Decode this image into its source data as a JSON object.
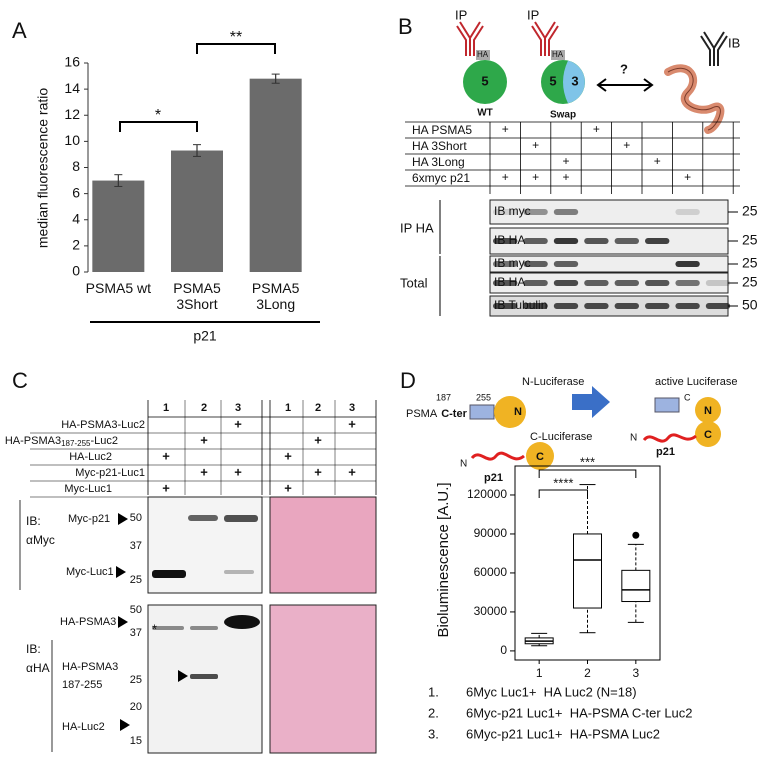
{
  "panel_labels": [
    "A",
    "B",
    "C",
    "D"
  ],
  "chart_data": [
    {
      "type": "bar",
      "y_label": "median fluorescence ratio",
      "categories": [
        "PSMA5 wt",
        "PSMA5 3Short",
        "PSMA5 3Long"
      ],
      "values": [
        7.0,
        9.3,
        14.8
      ],
      "errors": [
        0.45,
        0.45,
        0.35
      ],
      "color": "#6b6b6b",
      "ylim": [
        0,
        16
      ],
      "yticks": [
        0,
        2,
        4,
        6,
        8,
        10,
        12,
        14,
        16
      ],
      "group_label": "p21",
      "significance": [
        "*",
        "**"
      ]
    },
    {
      "type": "box",
      "y_label": "Bioluminescence [A.U.]",
      "categories": [
        "1",
        "2",
        "3"
      ],
      "boxes": [
        {
          "low": 4000,
          "q1": 5500,
          "median": 7500,
          "q3": 10000,
          "high": 13500,
          "outliers": []
        },
        {
          "low": 14000,
          "q1": 33000,
          "median": 70000,
          "q3": 90000,
          "high": 128000,
          "outliers": []
        },
        {
          "low": 22000,
          "q1": 38000,
          "median": 47000,
          "q3": 62000,
          "high": 82000,
          "outliers": [
            89000
          ]
        }
      ],
      "color": "#000000",
      "ylim": [
        -7000,
        142300
      ],
      "yticks": [
        0,
        30000,
        60000,
        90000,
        120000
      ],
      "significance": [
        "****",
        "***"
      ]
    }
  ],
  "panel_b": {
    "diagram": {
      "ip": "IP",
      "ha": "HA",
      "wt_domain": "5",
      "wt": "WT",
      "swap_domains": [
        "5",
        "3"
      ],
      "swap": "Swap",
      "question": "?",
      "ib": "IB"
    },
    "table": [
      {
        "label": "HA PSMA5",
        "cells": [
          "+",
          null,
          null,
          "+",
          null,
          null,
          null,
          null
        ]
      },
      {
        "label": "HA 3Short",
        "cells": [
          null,
          "+",
          null,
          null,
          "+",
          null,
          null,
          null
        ]
      },
      {
        "label": "HA 3Long",
        "cells": [
          null,
          null,
          "+",
          null,
          null,
          "+",
          null,
          null
        ]
      },
      {
        "label": "6xmyc p21",
        "cells": [
          "+",
          "+",
          "+",
          null,
          null,
          null,
          "+",
          null
        ]
      }
    ],
    "groups": [
      "IP HA",
      "Total"
    ],
    "blots": [
      {
        "label": "IB myc",
        "mw": "25"
      },
      {
        "label": "IB HA",
        "mw": "25"
      },
      {
        "label": "IB myc",
        "mw": "25"
      },
      {
        "label": "IB HA",
        "mw": "25"
      },
      {
        "label": "IB Tubulin",
        "mw": "50"
      }
    ]
  },
  "panel_c": {
    "lanes": [
      "1",
      "2",
      "3",
      "1",
      "2",
      "3"
    ],
    "table": [
      {
        "label": "HA-PSMA3-Luc2",
        "cells": [
          null,
          null,
          "+",
          null,
          null,
          "+"
        ]
      },
      {
        "label": "HA-PSMA3",
        "subscript": "187-255",
        "suffix": "-Luc2",
        "cells": [
          null,
          "+",
          null,
          null,
          "+",
          null
        ]
      },
      {
        "label": "HA-Luc2",
        "cells": [
          "+",
          null,
          null,
          "+",
          null,
          null
        ]
      },
      {
        "label": "Myc-p21-Luc1",
        "cells": [
          null,
          "+",
          "+",
          null,
          "+",
          "+"
        ]
      },
      {
        "label": "Myc-Luc1",
        "cells": [
          "+",
          null,
          null,
          "+",
          null,
          null
        ]
      }
    ],
    "myc_blot": {
      "ib": "IB:",
      "antibody": "αMyc",
      "bands": [
        "Myc-p21",
        "Myc-Luc1"
      ],
      "mw": [
        "50",
        "37",
        "25"
      ]
    },
    "ha_blot": {
      "ib": "IB:",
      "antibody": "αHA",
      "bands": [
        "HA-PSMA3",
        "HA-PSMA3",
        "187-255",
        "HA-Luc2"
      ],
      "mw": [
        "50",
        "37",
        "25",
        "20",
        "15"
      ],
      "star": "*"
    }
  },
  "panel_d": {
    "diagram": {
      "psma": "PSMA",
      "cter": "C-ter",
      "res_start": "187",
      "res_end": "255",
      "n_luc": "N-Luciferase",
      "n": "N",
      "c_luc": "C-Luciferase",
      "c": "C",
      "p21": "p21",
      "n_term": "N",
      "active": "active Luciferase",
      "active_c": "C",
      "active_n": "N",
      "active_cluc": "C",
      "active_nterm": "N",
      "active_p21": "p21"
    },
    "legend": [
      {
        "number": "1.",
        "text": "6Myc Luc1+  HA Luc2 (N=18)"
      },
      {
        "number": "2.",
        "text": "6Myc-p21 Luc1+  HA-PSMA C-ter Luc2"
      },
      {
        "number": "3.",
        "text": "6Myc-p21 Luc1+  HA-PSMA Luc2"
      }
    ]
  }
}
